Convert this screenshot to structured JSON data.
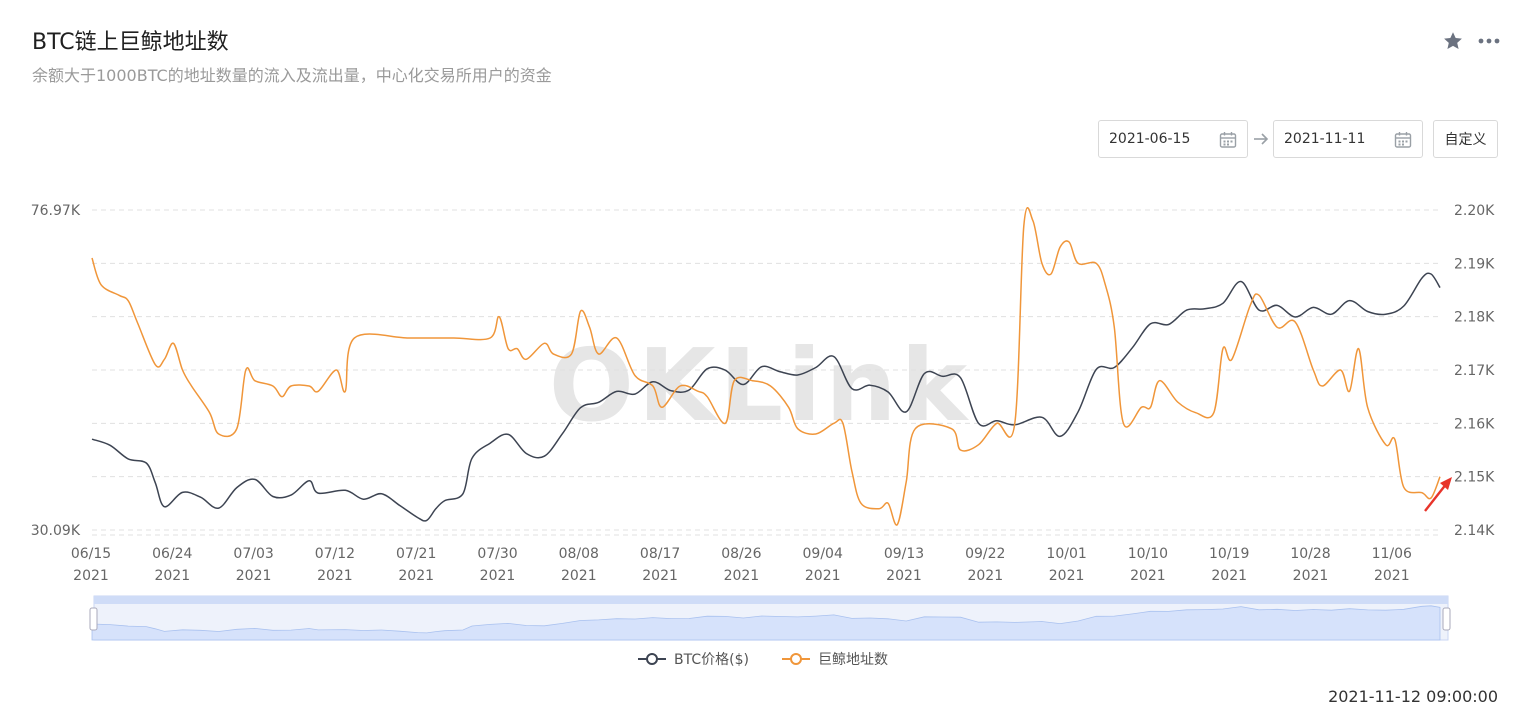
{
  "header": {
    "title": "BTC链上巨鲸地址数",
    "subtitle": "余额大于1000BTC的地址数量的流入及流出量，中心化交易所用户的资金"
  },
  "controls": {
    "start_date": "2021-06-15",
    "end_date": "2021-11-11",
    "custom_label": "自定义"
  },
  "icons": [
    "star-icon",
    "more-icon",
    "calendar-icon",
    "arrow-right-icon"
  ],
  "watermark": "OKLink",
  "footer": {
    "timestamp": "2021-11-12 09:00:00"
  },
  "colors": {
    "price": "#3d4452",
    "whales": "#f0963a",
    "grid": "#e0e0e0",
    "slider": "#d6e2fb"
  },
  "chart_data": {
    "type": "line",
    "x_ticks": [
      [
        "06/15",
        "2021"
      ],
      [
        "06/24",
        "2021"
      ],
      [
        "07/03",
        "2021"
      ],
      [
        "07/12",
        "2021"
      ],
      [
        "07/21",
        "2021"
      ],
      [
        "07/30",
        "2021"
      ],
      [
        "08/08",
        "2021"
      ],
      [
        "08/17",
        "2021"
      ],
      [
        "08/26",
        "2021"
      ],
      [
        "09/04",
        "2021"
      ],
      [
        "09/13",
        "2021"
      ],
      [
        "09/22",
        "2021"
      ],
      [
        "10/01",
        "2021"
      ],
      [
        "10/10",
        "2021"
      ],
      [
        "10/19",
        "2021"
      ],
      [
        "10/28",
        "2021"
      ],
      [
        "11/06",
        "2021"
      ]
    ],
    "x_range": [
      "2021-06-15",
      "2021-11-11"
    ],
    "y_left": {
      "ticks": [
        "76.97K",
        "30.09K"
      ],
      "range": [
        30090,
        76970
      ]
    },
    "y_right": {
      "ticks": [
        "2.20K",
        "2.19K",
        "2.18K",
        "2.17K",
        "2.16K",
        "2.15K",
        "2.14K"
      ],
      "range": [
        2140,
        2200
      ]
    },
    "legend": {
      "position": "bottom"
    },
    "series": [
      {
        "name": "BTC价格($)",
        "axis": "left",
        "points": [
          [
            "2021-06-15",
            43400
          ],
          [
            "2021-06-17",
            42500
          ],
          [
            "2021-06-19",
            40500
          ],
          [
            "2021-06-21",
            39900
          ],
          [
            "2021-06-22",
            37000
          ],
          [
            "2021-06-23",
            33500
          ],
          [
            "2021-06-25",
            35600
          ],
          [
            "2021-06-27",
            34900
          ],
          [
            "2021-06-29",
            33300
          ],
          [
            "2021-07-01",
            36300
          ],
          [
            "2021-07-03",
            37500
          ],
          [
            "2021-07-05",
            35000
          ],
          [
            "2021-07-07",
            35200
          ],
          [
            "2021-07-09",
            37300
          ],
          [
            "2021-07-10",
            35500
          ],
          [
            "2021-07-13",
            35900
          ],
          [
            "2021-07-15",
            34600
          ],
          [
            "2021-07-17",
            35400
          ],
          [
            "2021-07-19",
            33700
          ],
          [
            "2021-07-21",
            31900
          ],
          [
            "2021-07-22",
            31500
          ],
          [
            "2021-07-23",
            33200
          ],
          [
            "2021-07-24",
            34400
          ],
          [
            "2021-07-26",
            35400
          ],
          [
            "2021-07-27",
            40600
          ],
          [
            "2021-07-29",
            42800
          ],
          [
            "2021-07-31",
            44100
          ],
          [
            "2021-08-02",
            41300
          ],
          [
            "2021-08-04",
            40900
          ],
          [
            "2021-08-06",
            44200
          ],
          [
            "2021-08-08",
            48000
          ],
          [
            "2021-08-10",
            48800
          ],
          [
            "2021-08-12",
            50400
          ],
          [
            "2021-08-14",
            50000
          ],
          [
            "2021-08-16",
            51800
          ],
          [
            "2021-08-18",
            50500
          ],
          [
            "2021-08-20",
            50600
          ],
          [
            "2021-08-22",
            53700
          ],
          [
            "2021-08-24",
            53500
          ],
          [
            "2021-08-26",
            51400
          ],
          [
            "2021-08-28",
            54000
          ],
          [
            "2021-08-30",
            53300
          ],
          [
            "2021-09-01",
            52800
          ],
          [
            "2021-09-03",
            53900
          ],
          [
            "2021-09-05",
            55500
          ],
          [
            "2021-09-07",
            50800
          ],
          [
            "2021-09-09",
            51300
          ],
          [
            "2021-09-11",
            50300
          ],
          [
            "2021-09-13",
            47400
          ],
          [
            "2021-09-15",
            53000
          ],
          [
            "2021-09-17",
            52600
          ],
          [
            "2021-09-19",
            52400
          ],
          [
            "2021-09-21",
            45700
          ],
          [
            "2021-09-23",
            46100
          ],
          [
            "2021-09-25",
            45500
          ],
          [
            "2021-09-28",
            46600
          ],
          [
            "2021-09-30",
            43800
          ],
          [
            "2021-10-02",
            47400
          ],
          [
            "2021-10-04",
            53600
          ],
          [
            "2021-10-06",
            53900
          ],
          [
            "2021-10-08",
            56800
          ],
          [
            "2021-10-10",
            60300
          ],
          [
            "2021-10-12",
            60200
          ],
          [
            "2021-10-14",
            62300
          ],
          [
            "2021-10-16",
            62500
          ],
          [
            "2021-10-18",
            63300
          ],
          [
            "2021-10-20",
            66500
          ],
          [
            "2021-10-22",
            62300
          ],
          [
            "2021-10-24",
            63000
          ],
          [
            "2021-10-26",
            61300
          ],
          [
            "2021-10-28",
            62700
          ],
          [
            "2021-10-30",
            61700
          ],
          [
            "2021-11-01",
            63700
          ],
          [
            "2021-11-03",
            62100
          ],
          [
            "2021-11-05",
            61700
          ],
          [
            "2021-11-07",
            62900
          ],
          [
            "2021-11-09",
            67000
          ],
          [
            "2021-11-10",
            67600
          ],
          [
            "2021-11-11",
            65600
          ]
        ]
      },
      {
        "name": "巨鲸地址数",
        "axis": "right",
        "points": [
          [
            "2021-06-15",
            2191
          ],
          [
            "2021-06-16",
            2186
          ],
          [
            "2021-06-18",
            2184
          ],
          [
            "2021-06-19",
            2183
          ],
          [
            "2021-06-20",
            2179
          ],
          [
            "2021-06-22",
            2171
          ],
          [
            "2021-06-23",
            2172
          ],
          [
            "2021-06-24",
            2175
          ],
          [
            "2021-06-25",
            2170
          ],
          [
            "2021-06-26",
            2167
          ],
          [
            "2021-06-28",
            2162
          ],
          [
            "2021-06-29",
            2158
          ],
          [
            "2021-07-01",
            2159
          ],
          [
            "2021-07-02",
            2170
          ],
          [
            "2021-07-03",
            2168
          ],
          [
            "2021-07-05",
            2167
          ],
          [
            "2021-07-06",
            2165
          ],
          [
            "2021-07-07",
            2167
          ],
          [
            "2021-07-09",
            2167
          ],
          [
            "2021-07-10",
            2166
          ],
          [
            "2021-07-12",
            2170
          ],
          [
            "2021-07-13",
            2166
          ],
          [
            "2021-07-14",
            2176
          ],
          [
            "2021-07-20",
            2176
          ],
          [
            "2021-07-25",
            2176
          ],
          [
            "2021-07-29",
            2176
          ],
          [
            "2021-07-30",
            2180
          ],
          [
            "2021-07-31",
            2174
          ],
          [
            "2021-08-01",
            2174
          ],
          [
            "2021-08-02",
            2172
          ],
          [
            "2021-08-04",
            2175
          ],
          [
            "2021-08-05",
            2173
          ],
          [
            "2021-08-07",
            2173
          ],
          [
            "2021-08-08",
            2181
          ],
          [
            "2021-08-09",
            2178
          ],
          [
            "2021-08-10",
            2173
          ],
          [
            "2021-08-12",
            2176
          ],
          [
            "2021-08-14",
            2169
          ],
          [
            "2021-08-16",
            2167
          ],
          [
            "2021-08-17",
            2163
          ],
          [
            "2021-08-19",
            2167
          ],
          [
            "2021-08-21",
            2166
          ],
          [
            "2021-08-22",
            2165
          ],
          [
            "2021-08-24",
            2160
          ],
          [
            "2021-08-25",
            2168
          ],
          [
            "2021-08-27",
            2168
          ],
          [
            "2021-08-29",
            2167
          ],
          [
            "2021-08-31",
            2163
          ],
          [
            "2021-09-01",
            2159
          ],
          [
            "2021-09-03",
            2158
          ],
          [
            "2021-09-05",
            2160
          ],
          [
            "2021-09-06",
            2160
          ],
          [
            "2021-09-07",
            2151
          ],
          [
            "2021-09-08",
            2145
          ],
          [
            "2021-09-10",
            2144
          ],
          [
            "2021-09-11",
            2145
          ],
          [
            "2021-09-12",
            2141
          ],
          [
            "2021-09-13",
            2149
          ],
          [
            "2021-09-14",
            2159
          ],
          [
            "2021-09-18",
            2159
          ],
          [
            "2021-09-19",
            2155
          ],
          [
            "2021-09-21",
            2156
          ],
          [
            "2021-09-23",
            2160
          ],
          [
            "2021-09-25",
            2160
          ],
          [
            "2021-09-26",
            2197
          ],
          [
            "2021-09-27",
            2198
          ],
          [
            "2021-09-28",
            2190
          ],
          [
            "2021-09-29",
            2188
          ],
          [
            "2021-09-30",
            2193
          ],
          [
            "2021-10-01",
            2194
          ],
          [
            "2021-10-02",
            2190
          ],
          [
            "2021-10-04",
            2190
          ],
          [
            "2021-10-05",
            2186
          ],
          [
            "2021-10-06",
            2178
          ],
          [
            "2021-10-07",
            2160
          ],
          [
            "2021-10-09",
            2163
          ],
          [
            "2021-10-10",
            2163
          ],
          [
            "2021-10-11",
            2168
          ],
          [
            "2021-10-13",
            2164
          ],
          [
            "2021-10-15",
            2162
          ],
          [
            "2021-10-17",
            2162
          ],
          [
            "2021-10-18",
            2174
          ],
          [
            "2021-10-19",
            2172
          ],
          [
            "2021-10-21",
            2182
          ],
          [
            "2021-10-22",
            2184
          ],
          [
            "2021-10-24",
            2178
          ],
          [
            "2021-10-26",
            2179
          ],
          [
            "2021-10-28",
            2170
          ],
          [
            "2021-10-29",
            2167
          ],
          [
            "2021-10-31",
            2170
          ],
          [
            "2021-11-01",
            2166
          ],
          [
            "2021-11-02",
            2174
          ],
          [
            "2021-11-03",
            2163
          ],
          [
            "2021-11-05",
            2156
          ],
          [
            "2021-11-06",
            2157
          ],
          [
            "2021-11-07",
            2148
          ],
          [
            "2021-11-09",
            2147
          ],
          [
            "2021-11-10",
            2146
          ],
          [
            "2021-11-11",
            2150
          ]
        ]
      }
    ]
  }
}
